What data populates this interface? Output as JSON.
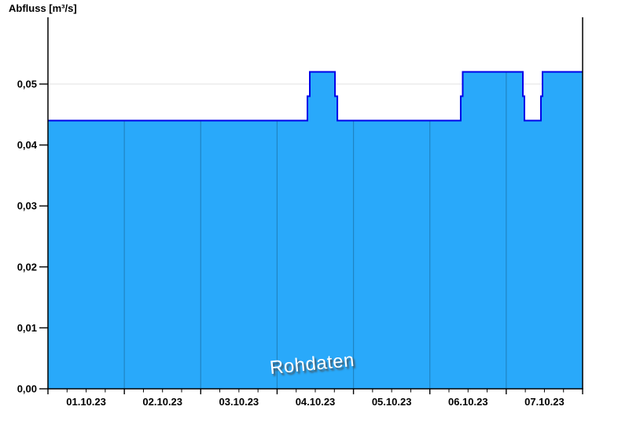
{
  "title": "Abfluss [m³/s]",
  "watermark": "Rohdaten",
  "chart_data": {
    "type": "area",
    "mode": "step",
    "title": "Abfluss [m³/s]",
    "ylabel": "Abfluss [m³/s]",
    "xlabel": "",
    "watermark": "Rohdaten",
    "unit": "m³/s",
    "grid": true,
    "legend": null,
    "x_tick_labels": [
      "01.10.23",
      "02.10.23",
      "03.10.23",
      "04.10.23",
      "05.10.23",
      "06.10.23",
      "07.10.23"
    ],
    "y_tick_labels": [
      "0,00",
      "0,01",
      "0,02",
      "0,03",
      "0,04",
      "0,05"
    ],
    "y_tick_values": [
      0,
      0.01,
      0.02,
      0.03,
      0.04,
      0.05
    ],
    "ylim": [
      0,
      0.061
    ],
    "x_range_days": [
      0,
      7
    ],
    "x_minor_tick_step_days": 0.25,
    "vertical_gridline_days": [
      1,
      2,
      3,
      4,
      5,
      6
    ],
    "series": [
      {
        "name": "Rohdaten",
        "segments": [
          {
            "from_day": 0.0,
            "to_day": 3.397,
            "value": 0.044
          },
          {
            "from_day": 3.397,
            "to_day": 3.428,
            "value": 0.048
          },
          {
            "from_day": 3.428,
            "to_day": 3.758,
            "value": 0.052
          },
          {
            "from_day": 3.758,
            "to_day": 3.789,
            "value": 0.048
          },
          {
            "from_day": 3.789,
            "to_day": 5.404,
            "value": 0.044
          },
          {
            "from_day": 5.404,
            "to_day": 5.43,
            "value": 0.048
          },
          {
            "from_day": 5.43,
            "to_day": 6.218,
            "value": 0.052
          },
          {
            "from_day": 6.218,
            "to_day": 6.238,
            "value": 0.048
          },
          {
            "from_day": 6.238,
            "to_day": 6.454,
            "value": 0.044
          },
          {
            "from_day": 6.454,
            "to_day": 6.475,
            "value": 0.048
          },
          {
            "from_day": 6.475,
            "to_day": 7.0,
            "value": 0.052
          }
        ]
      }
    ],
    "colors": {
      "area_fill": "#29A9FA",
      "area_line": "#0000E8",
      "grid_horizontal": "#E8E8E8",
      "grid_vertical_on_fill": "rgba(0,0,0,0.22)",
      "axis": "#000000",
      "label_text": "#000000",
      "watermark_text": "#FFFFFF",
      "watermark_shadow": "rgba(70,70,70,0.85)",
      "background": "#FFFFFF"
    }
  }
}
